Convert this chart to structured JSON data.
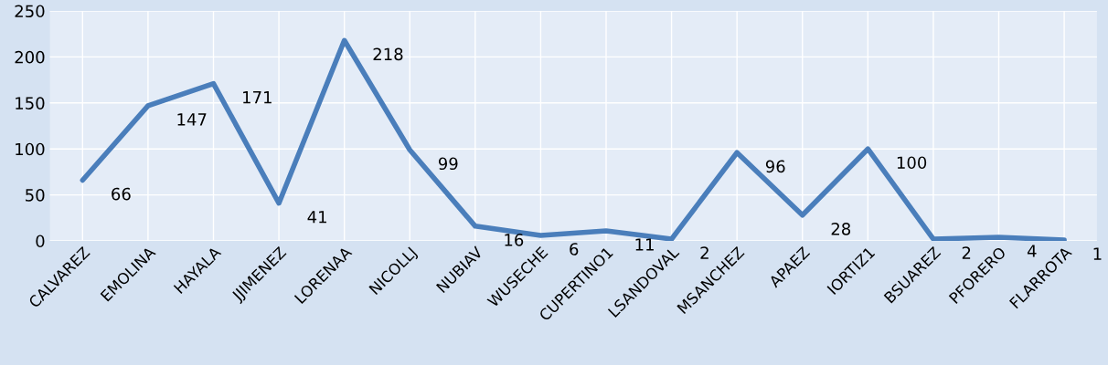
{
  "chart_data": {
    "type": "line",
    "categories": [
      "CALVAREZ",
      "EMOLINA",
      "HAYALA",
      "JJIMENEZ",
      "LORENAA",
      "NICOLLJ",
      "NUBIAV",
      "WUSECHE",
      "CUPERTINO1",
      "LSANDOVAL",
      "MSANCHEZ",
      "APAEZ",
      "IORTIZ1",
      "BSUAREZ",
      "PFORERO",
      "FLARROTA"
    ],
    "series": [
      {
        "color": "#4a7ebb",
        "values": [
          66,
          147,
          171,
          41,
          218,
          99,
          16,
          6,
          11,
          2,
          96,
          28,
          100,
          2,
          4,
          1
        ]
      }
    ],
    "ylim": [
      0,
      250
    ],
    "yticks": [
      0,
      50,
      100,
      150,
      200,
      250
    ],
    "grid": true,
    "data_labels": true,
    "marker": "none",
    "line_style": "solid",
    "legend": false
  }
}
